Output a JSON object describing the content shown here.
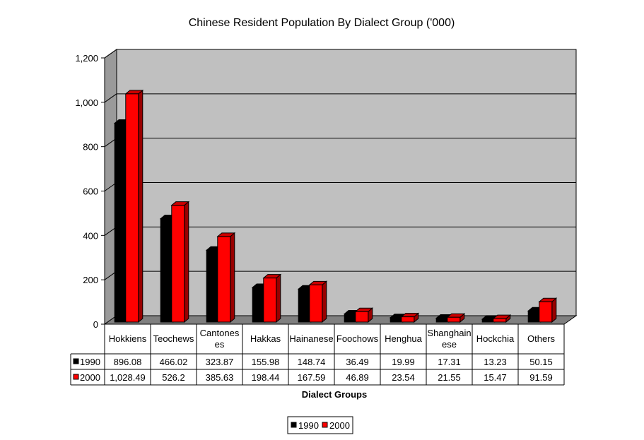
{
  "chart_data": {
    "type": "bar",
    "title": "Chinese Resident Population By Dialect Group ('000)",
    "xlabel": "Dialect Groups",
    "ylabel": "",
    "ylim": [
      0,
      1200
    ],
    "yticks": [
      0,
      200,
      400,
      600,
      800,
      1000,
      1200
    ],
    "ytick_labels": [
      "0",
      "200",
      "400",
      "600",
      "800",
      "1,000",
      "1,200"
    ],
    "grid": true,
    "legend_position": "bottom",
    "categories": [
      "Hokkiens",
      "Teochews",
      "Cantonese",
      "Hakkas",
      "Hainanese",
      "Foochows",
      "Henghua",
      "Shanghainese",
      "Hockchia",
      "Others"
    ],
    "category_lines": [
      [
        "Hokkiens"
      ],
      [
        "Teochews"
      ],
      [
        "Cantones",
        "es"
      ],
      [
        "Hakkas"
      ],
      [
        "Hainanese"
      ],
      [
        "Foochows"
      ],
      [
        "Henghua"
      ],
      [
        "Shanghain",
        "ese"
      ],
      [
        "Hockchia"
      ],
      [
        "Others"
      ]
    ],
    "series": [
      {
        "name": "1990",
        "color": "#000000",
        "values": [
          896.08,
          466.02,
          323.87,
          155.98,
          148.74,
          36.49,
          19.99,
          17.31,
          13.23,
          50.15
        ],
        "labels": [
          "896.08",
          "466.02",
          "323.87",
          "155.98",
          "148.74",
          "36.49",
          "19.99",
          "17.31",
          "13.23",
          "50.15"
        ]
      },
      {
        "name": "2000",
        "color": "#ff0000",
        "values": [
          1028.49,
          526.2,
          385.63,
          198.44,
          167.59,
          46.89,
          23.54,
          21.55,
          15.47,
          91.59
        ],
        "labels": [
          "1,028.49",
          "526.2",
          "385.63",
          "198.44",
          "167.59",
          "46.89",
          "23.54",
          "21.55",
          "15.47",
          "91.59"
        ]
      }
    ],
    "colors": {
      "plot_background": "#c0c0c0",
      "plot_side": "#9a9a9a",
      "plot_floor": "#808080"
    }
  }
}
